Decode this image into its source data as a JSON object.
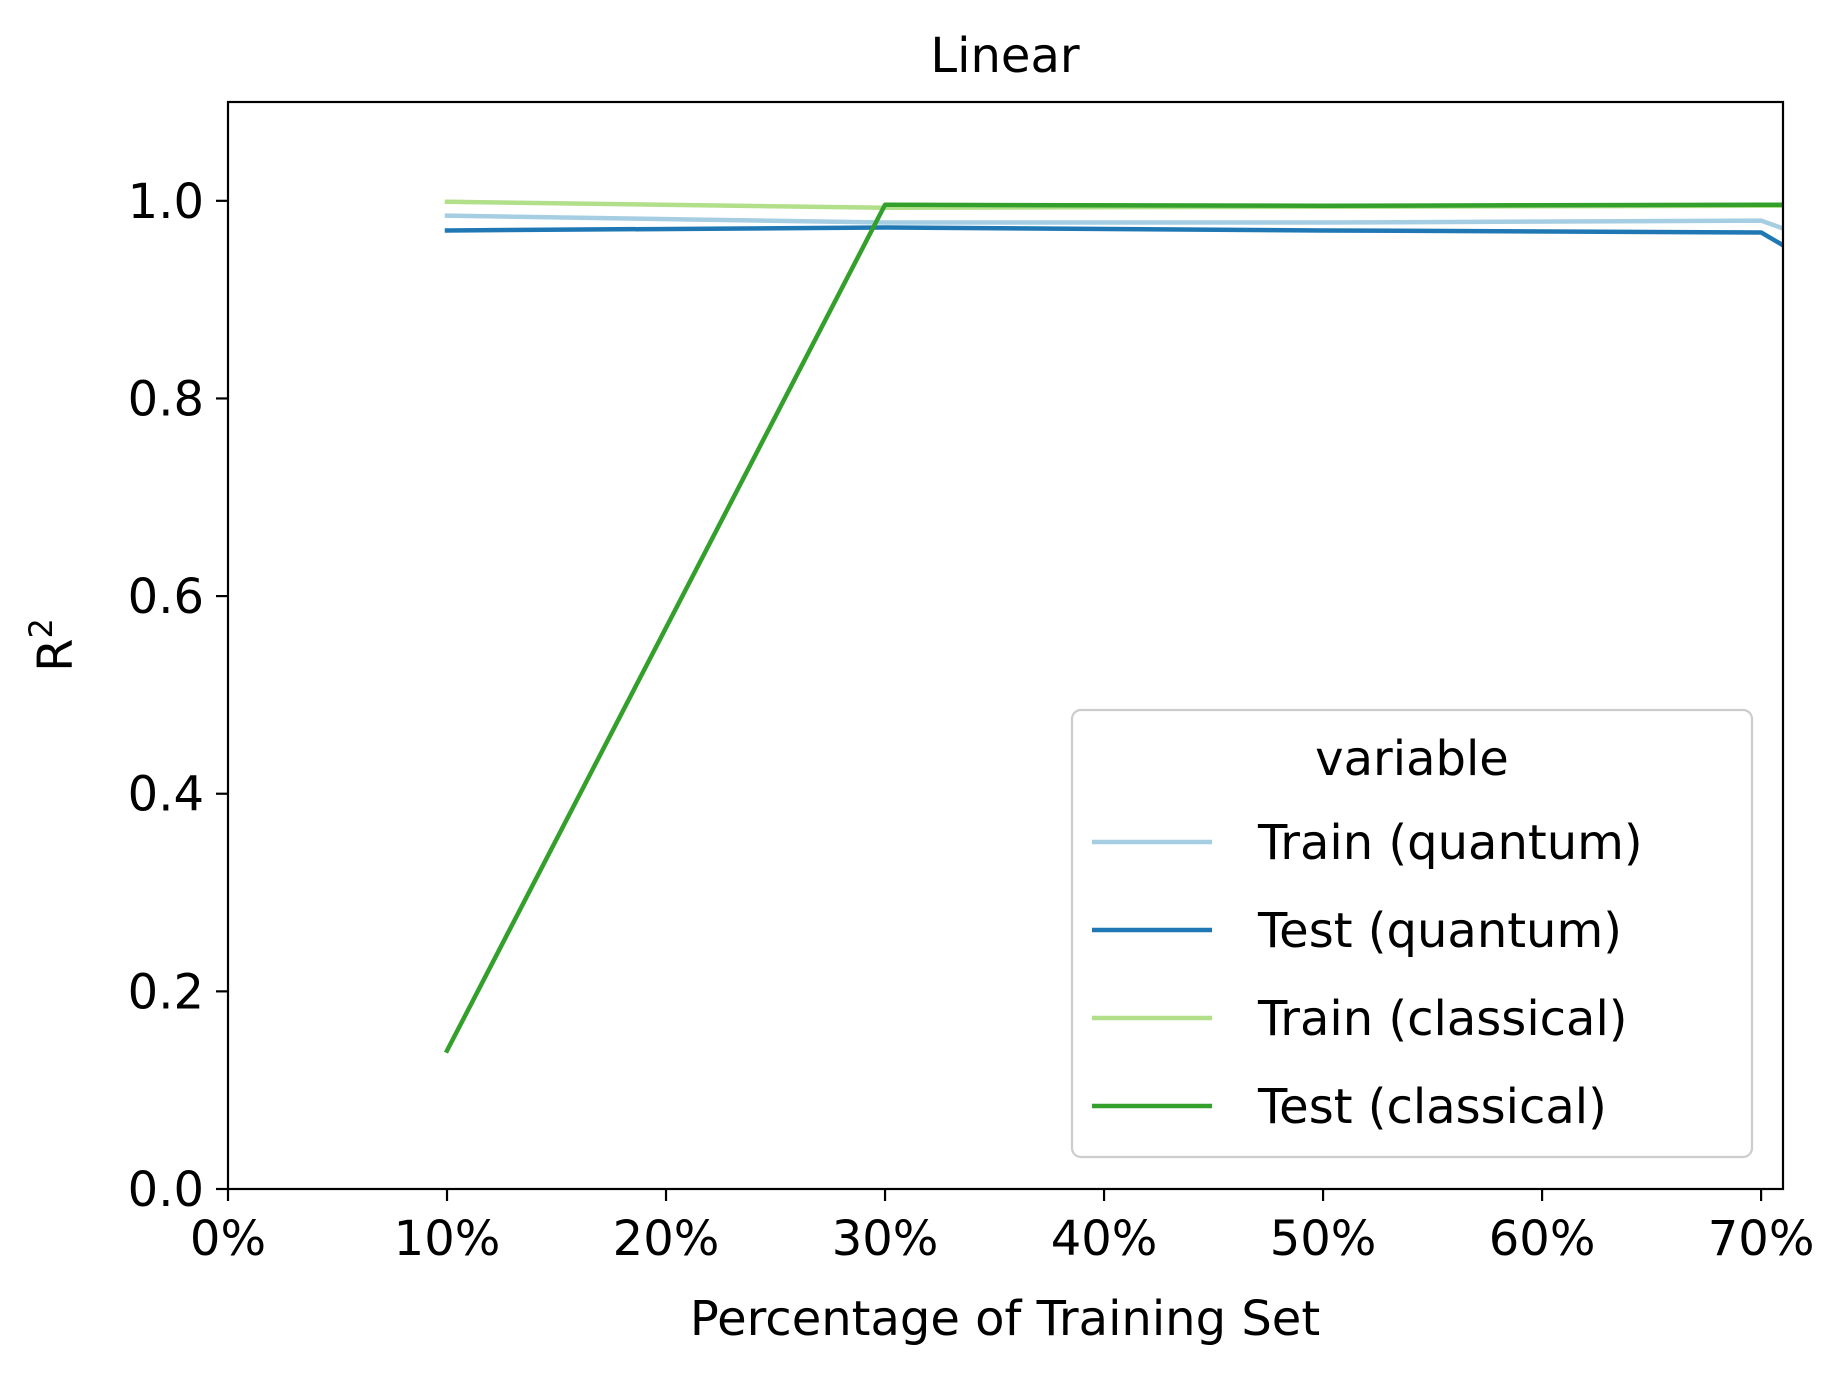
{
  "chart_data": {
    "type": "line",
    "title": "Linear",
    "xlabel": "Percentage of Training Set",
    "ylabel": "R",
    "ylabel_superscript": "2",
    "xlim": [
      0,
      71
    ],
    "ylim": [
      0.0,
      1.1
    ],
    "x_ticks": [
      0,
      10,
      20,
      30,
      40,
      50,
      60,
      70
    ],
    "x_tick_labels": [
      "0%",
      "10%",
      "20%",
      "30%",
      "40%",
      "50%",
      "60%",
      "70%"
    ],
    "y_ticks": [
      0.0,
      0.2,
      0.4,
      0.6,
      0.8,
      1.0
    ],
    "y_tick_labels": [
      "0.0",
      "0.2",
      "0.4",
      "0.6",
      "0.8",
      "1.0"
    ],
    "grid": false,
    "legend": {
      "title": "variable",
      "placement": "lower-right"
    },
    "series": [
      {
        "name": "Train (quantum)",
        "color": "#a6cee3",
        "x": [
          10,
          30,
          50,
          70,
          71
        ],
        "y": [
          0.985,
          0.978,
          0.978,
          0.98,
          0.972
        ]
      },
      {
        "name": "Test (quantum)",
        "color": "#1f78b4",
        "x": [
          10,
          30,
          50,
          70,
          71
        ],
        "y": [
          0.97,
          0.973,
          0.97,
          0.968,
          0.955
        ]
      },
      {
        "name": "Train (classical)",
        "color": "#b2df8a",
        "x": [
          10,
          30,
          50,
          70,
          71
        ],
        "y": [
          0.999,
          0.993,
          0.994,
          0.995,
          0.995
        ]
      },
      {
        "name": "Test (classical)",
        "color": "#33a02c",
        "x": [
          10,
          30,
          50,
          70,
          71
        ],
        "y": [
          0.14,
          0.996,
          0.995,
          0.996,
          0.996
        ]
      }
    ]
  }
}
